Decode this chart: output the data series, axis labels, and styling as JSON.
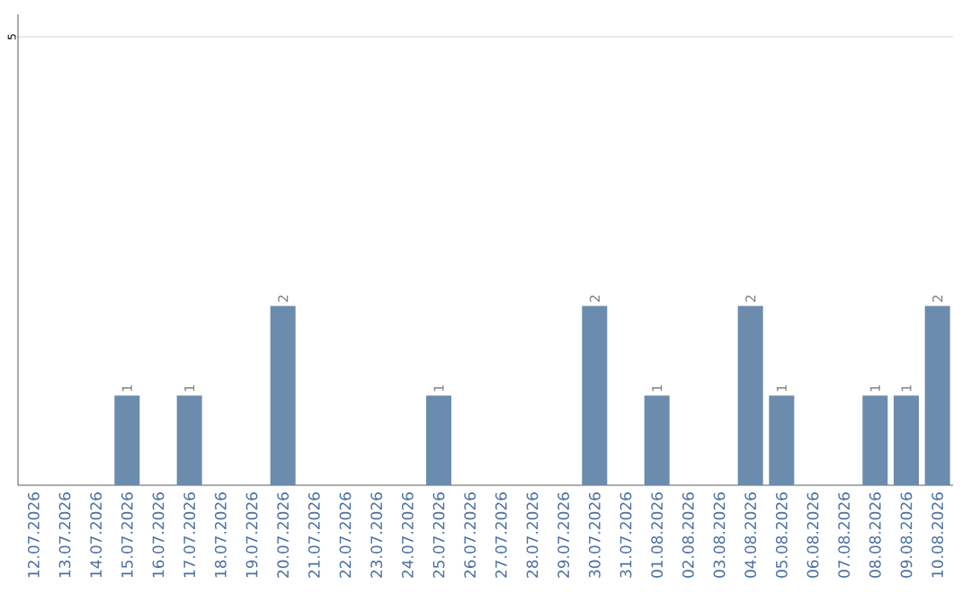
{
  "chart_data": {
    "type": "bar",
    "categories": [
      "12.07.2026",
      "13.07.2026",
      "14.07.2026",
      "15.07.2026",
      "16.07.2026",
      "17.07.2026",
      "18.07.2026",
      "19.07.2026",
      "20.07.2026",
      "21.07.2026",
      "22.07.2026",
      "23.07.2026",
      "24.07.2026",
      "25.07.2026",
      "26.07.2026",
      "27.07.2026",
      "28.07.2026",
      "29.07.2026",
      "30.07.2026",
      "31.07.2026",
      "01.08.2026",
      "02.08.2026",
      "03.08.2026",
      "04.08.2026",
      "05.08.2026",
      "06.08.2026",
      "07.08.2026",
      "08.08.2026",
      "09.08.2026",
      "10.08.2026"
    ],
    "values": [
      0,
      0,
      0,
      1,
      0,
      1,
      0,
      0,
      2,
      0,
      0,
      0,
      0,
      1,
      0,
      0,
      0,
      0,
      2,
      0,
      1,
      0,
      0,
      2,
      1,
      0,
      0,
      1,
      1,
      2
    ],
    "value_labels": [
      null,
      null,
      null,
      "1",
      null,
      "1",
      null,
      null,
      "2",
      null,
      null,
      null,
      null,
      "1",
      null,
      null,
      null,
      null,
      "2",
      null,
      "1",
      null,
      null,
      "2",
      "1",
      null,
      null,
      "1",
      "1",
      "2"
    ],
    "color": "#6b8cad",
    "ylim": [
      0,
      5.25
    ],
    "yticks": [
      5
    ],
    "grid": "y"
  }
}
